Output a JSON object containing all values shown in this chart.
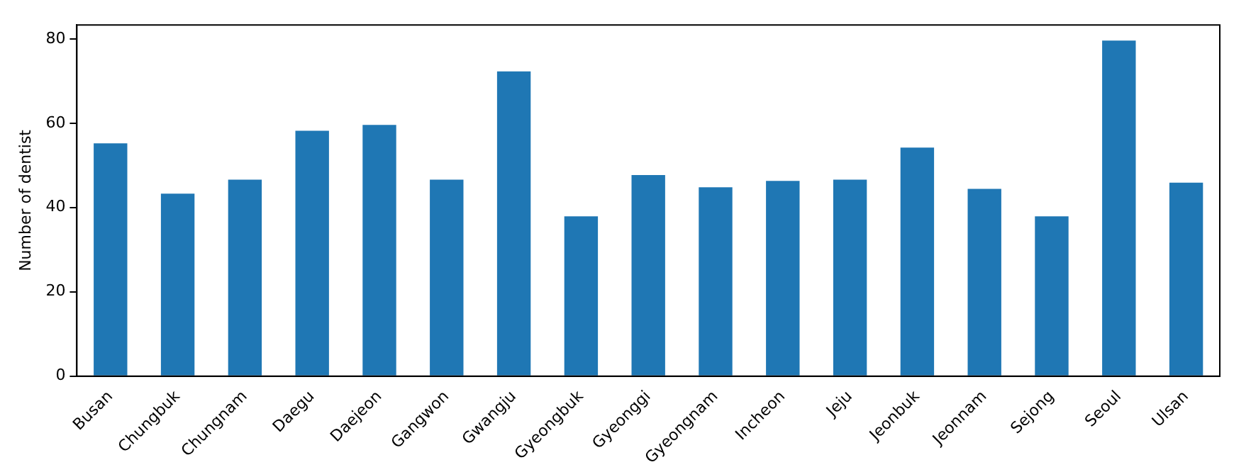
{
  "chart_data": {
    "type": "bar",
    "ylabel": "Number of dentist",
    "categories": [
      "Busan",
      "Chungbuk",
      "Chungnam",
      "Daegu",
      "Daejeon",
      "Gangwon",
      "Gwangju",
      "Gyeongbuk",
      "Gyeonggi",
      "Gyeongnam",
      "Incheon",
      "Jeju",
      "Jeonbuk",
      "Jeonnam",
      "Sejong",
      "Seoul",
      "Ulsan"
    ],
    "values": [
      55.2,
      43.3,
      46.6,
      58.2,
      59.6,
      46.6,
      72.3,
      37.9,
      47.7,
      44.8,
      46.3,
      46.6,
      54.2,
      44.4,
      37.9,
      79.6,
      45.9
    ],
    "color": "#1f77b4",
    "ylim": [
      0,
      83.3
    ],
    "yticks": [
      0,
      20,
      40,
      60,
      80
    ],
    "grid": false,
    "legend": false
  }
}
